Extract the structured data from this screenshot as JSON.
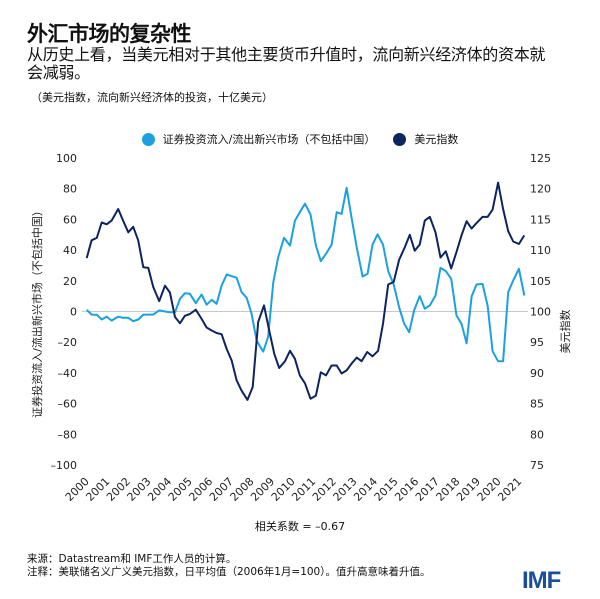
{
  "title": "外汇市场的复杂性",
  "subtitle": "从历史上看，当美元相对于其他主要货币升值时，流向新兴经济体的资本就会减弱。",
  "units": "（美元指数，流向新兴经济体的投资，十亿美元）",
  "correlation": "相关系数 = –0.67",
  "source": "来源：Datastream和 IMF工作人员的计算。",
  "note": "注释：美联储名义广义美元指数，日平均值（2006年1月=100）。值升高意味着升值。",
  "logo": "IMF",
  "chart_data": {
    "type": "line",
    "title": "",
    "xlabel": "",
    "ylabel_left": "证券投资流入/流出新兴市场（不包括中国）",
    "ylabel_right": "美元指数",
    "xlim": [
      2000,
      2021.25
    ],
    "ylim_left": [
      -100,
      100
    ],
    "ylim_right": [
      75,
      125
    ],
    "x_ticks": [
      "2000",
      "2001",
      "2002",
      "2003",
      "2004",
      "2005",
      "2006",
      "2007",
      "2008",
      "2009",
      "2010",
      "2011",
      "2012",
      "2013",
      "2014",
      "2015",
      "2016",
      "2017",
      "2018",
      "2019",
      "2020",
      "2021"
    ],
    "y_ticks_left": [
      "100",
      "80",
      "60",
      "40",
      "20",
      "0",
      "–20",
      "–40",
      "–60",
      "–80",
      "–100"
    ],
    "y_ticks_right": [
      "125",
      "120",
      "115",
      "110",
      "105",
      "100",
      "95",
      "90",
      "85",
      "80",
      "75"
    ],
    "legend_position": "top",
    "grid": false,
    "series": [
      {
        "name": "证券投资流入/流出新兴市场（不包括中国）",
        "axis": "left",
        "color": "#1ba1e2",
        "points": [
          [
            2000.0,
            1.1
          ],
          [
            2000.24,
            -2.0
          ],
          [
            2000.49,
            -2.1
          ],
          [
            2000.73,
            -5.2
          ],
          [
            2000.97,
            -3.3
          ],
          [
            2001.21,
            -5.9
          ],
          [
            2001.53,
            -3.3
          ],
          [
            2001.77,
            -4.1
          ],
          [
            2002.02,
            -4.1
          ],
          [
            2002.26,
            -6.3
          ],
          [
            2002.5,
            -5.2
          ],
          [
            2002.75,
            -2.0
          ],
          [
            2002.99,
            -2.0
          ],
          [
            2003.23,
            -2.0
          ],
          [
            2003.52,
            0.7
          ],
          [
            2003.8,
            0
          ],
          [
            2004.04,
            -0.5
          ],
          [
            2004.29,
            -0.5
          ],
          [
            2004.53,
            8.3
          ],
          [
            2004.77,
            11.9
          ],
          [
            2005.01,
            11.5
          ],
          [
            2005.3,
            5.4
          ],
          [
            2005.58,
            11.1
          ],
          [
            2005.82,
            4.4
          ],
          [
            2006.07,
            7.6
          ],
          [
            2006.31,
            5.0
          ],
          [
            2006.55,
            16.9
          ],
          [
            2006.8,
            24.1
          ],
          [
            2007.04,
            23.0
          ],
          [
            2007.28,
            22.0
          ],
          [
            2007.52,
            12.6
          ],
          [
            2007.77,
            8.9
          ],
          [
            2008.01,
            -1.5
          ],
          [
            2008.25,
            -18.9
          ],
          [
            2008.57,
            -26.1
          ],
          [
            2008.81,
            -16.7
          ],
          [
            2009.06,
            19.1
          ],
          [
            2009.3,
            35.4
          ],
          [
            2009.58,
            48.0
          ],
          [
            2009.87,
            43.0
          ],
          [
            2010.11,
            59.1
          ],
          [
            2010.35,
            64.7
          ],
          [
            2010.6,
            70.2
          ],
          [
            2010.87,
            63.2
          ],
          [
            2011.13,
            43.0
          ],
          [
            2011.37,
            32.8
          ],
          [
            2011.62,
            37.6
          ],
          [
            2011.89,
            43.5
          ],
          [
            2012.14,
            64.7
          ],
          [
            2012.38,
            63.6
          ],
          [
            2012.62,
            80.6
          ],
          [
            2012.86,
            61.4
          ],
          [
            2013.11,
            41.9
          ],
          [
            2013.4,
            22.8
          ],
          [
            2013.64,
            24.6
          ],
          [
            2013.88,
            43.5
          ],
          [
            2014.12,
            50.2
          ],
          [
            2014.39,
            43.6
          ],
          [
            2014.64,
            26.3
          ],
          [
            2014.91,
            17.6
          ],
          [
            2015.17,
            2.8
          ],
          [
            2015.41,
            -7.6
          ],
          [
            2015.66,
            -13.5
          ],
          [
            2015.9,
            0.7
          ],
          [
            2016.17,
            10.0
          ],
          [
            2016.42,
            1.8
          ],
          [
            2016.66,
            3.9
          ],
          [
            2016.94,
            10.4
          ],
          [
            2017.18,
            28.5
          ],
          [
            2017.44,
            26.3
          ],
          [
            2017.7,
            21.3
          ],
          [
            2017.96,
            -2.6
          ],
          [
            2018.2,
            -8.0
          ],
          [
            2018.45,
            -20.7
          ],
          [
            2018.69,
            9.8
          ],
          [
            2018.93,
            17.6
          ],
          [
            2019.22,
            18.0
          ],
          [
            2019.47,
            3.9
          ],
          [
            2019.71,
            -25.9
          ],
          [
            2019.98,
            -32.4
          ],
          [
            2020.22,
            -32.4
          ],
          [
            2020.47,
            12.6
          ],
          [
            2020.71,
            20.2
          ],
          [
            2020.99,
            27.8
          ],
          [
            2021.25,
            10.4
          ]
        ]
      },
      {
        "name": "美元指数",
        "axis": "right",
        "color": "#0d2460",
        "points": [
          [
            2000.0,
            108.7
          ],
          [
            2000.24,
            111.6
          ],
          [
            2000.49,
            112.0
          ],
          [
            2000.73,
            114.5
          ],
          [
            2000.97,
            114.2
          ],
          [
            2001.21,
            114.8
          ],
          [
            2001.53,
            116.7
          ],
          [
            2001.77,
            114.8
          ],
          [
            2002.02,
            112.9
          ],
          [
            2002.26,
            113.8
          ],
          [
            2002.5,
            111.6
          ],
          [
            2002.75,
            107.2
          ],
          [
            2002.99,
            107.1
          ],
          [
            2003.23,
            104.0
          ],
          [
            2003.52,
            101.7
          ],
          [
            2003.8,
            104.2
          ],
          [
            2004.04,
            103.1
          ],
          [
            2004.29,
            99.1
          ],
          [
            2004.53,
            98.1
          ],
          [
            2004.77,
            99.3
          ],
          [
            2005.01,
            99.6
          ],
          [
            2005.3,
            100.3
          ],
          [
            2005.58,
            98.8
          ],
          [
            2005.82,
            97.4
          ],
          [
            2006.07,
            96.9
          ],
          [
            2006.31,
            96.5
          ],
          [
            2006.55,
            96.3
          ],
          [
            2006.8,
            93.9
          ],
          [
            2007.04,
            92.0
          ],
          [
            2007.28,
            88.8
          ],
          [
            2007.52,
            87.1
          ],
          [
            2007.81,
            85.6
          ],
          [
            2008.06,
            87.7
          ],
          [
            2008.33,
            98.3
          ],
          [
            2008.61,
            101.0
          ],
          [
            2008.86,
            96.9
          ],
          [
            2009.11,
            93.1
          ],
          [
            2009.35,
            90.8
          ],
          [
            2009.63,
            91.9
          ],
          [
            2009.87,
            93.6
          ],
          [
            2010.11,
            92.3
          ],
          [
            2010.35,
            89.6
          ],
          [
            2010.6,
            88.3
          ],
          [
            2010.87,
            85.8
          ],
          [
            2011.13,
            86.3
          ],
          [
            2011.37,
            90.1
          ],
          [
            2011.62,
            89.6
          ],
          [
            2011.89,
            91.2
          ],
          [
            2012.14,
            91.2
          ],
          [
            2012.38,
            89.9
          ],
          [
            2012.62,
            90.4
          ],
          [
            2012.86,
            91.5
          ],
          [
            2013.11,
            92.5
          ],
          [
            2013.35,
            91.9
          ],
          [
            2013.62,
            93.4
          ],
          [
            2013.88,
            92.7
          ],
          [
            2014.15,
            93.6
          ],
          [
            2014.39,
            98.0
          ],
          [
            2014.64,
            104.4
          ],
          [
            2014.91,
            104.8
          ],
          [
            2015.17,
            108.4
          ],
          [
            2015.45,
            110.5
          ],
          [
            2015.69,
            112.5
          ],
          [
            2015.93,
            109.9
          ],
          [
            2016.17,
            110.9
          ],
          [
            2016.42,
            114.8
          ],
          [
            2016.66,
            115.4
          ],
          [
            2016.94,
            112.9
          ],
          [
            2017.18,
            108.8
          ],
          [
            2017.44,
            109.8
          ],
          [
            2017.7,
            107.0
          ],
          [
            2017.96,
            109.7
          ],
          [
            2018.2,
            112.4
          ],
          [
            2018.45,
            114.7
          ],
          [
            2018.69,
            113.5
          ],
          [
            2018.93,
            114.4
          ],
          [
            2019.22,
            115.4
          ],
          [
            2019.47,
            115.4
          ],
          [
            2019.71,
            116.6
          ],
          [
            2019.98,
            121.0
          ],
          [
            2020.22,
            116.7
          ],
          [
            2020.47,
            113.1
          ],
          [
            2020.71,
            111.4
          ],
          [
            2020.99,
            111.0
          ],
          [
            2021.25,
            112.4
          ]
        ]
      }
    ]
  }
}
